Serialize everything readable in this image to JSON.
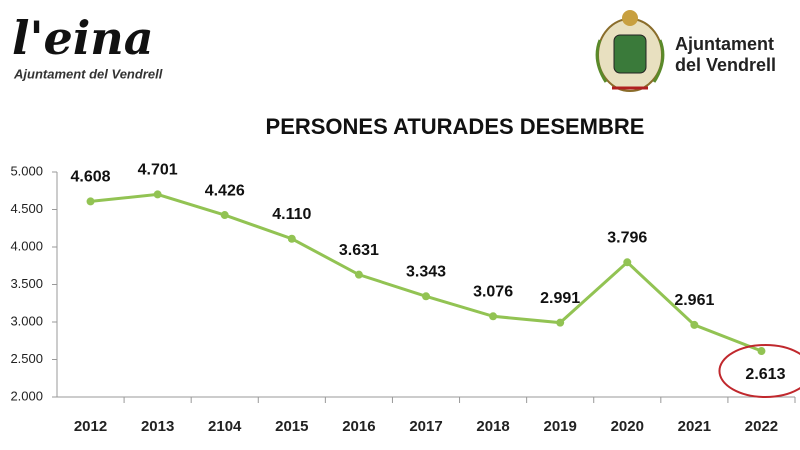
{
  "logos": {
    "left_name": "l'eina",
    "left_sub": "Ajuntament del Vendrell",
    "right_line1": "Ajuntament",
    "right_line2": "del Vendrell"
  },
  "chart_data": {
    "type": "line",
    "title": "PERSONES ATURADES DESEMBRE",
    "categories": [
      "2012",
      "2013",
      "2104",
      "2015",
      "2016",
      "2017",
      "2018",
      "2019",
      "2020",
      "2021",
      "2022"
    ],
    "series": [
      {
        "name": "Persones aturades",
        "color": "#92c353",
        "values": [
          4608,
          4701,
          4426,
          4110,
          3631,
          3343,
          3076,
          2991,
          3796,
          2961,
          2613
        ],
        "value_labels": [
          "4.608",
          "4.701",
          "4.426",
          "4.110",
          "3.631",
          "3.343",
          "3.076",
          "2.991",
          "3.796",
          "2.961",
          "2.613"
        ]
      }
    ],
    "ylim": [
      2000,
      5000
    ],
    "yticks": [
      {
        "value": 2000,
        "label": "2.000"
      },
      {
        "value": 2500,
        "label": "2.500"
      },
      {
        "value": 3000,
        "label": "3.000"
      },
      {
        "value": 3500,
        "label": "3.500"
      },
      {
        "value": 4000,
        "label": "4.000"
      },
      {
        "value": 4500,
        "label": "4.500"
      },
      {
        "value": 5000,
        "label": "5.000"
      }
    ],
    "grid": false
  }
}
